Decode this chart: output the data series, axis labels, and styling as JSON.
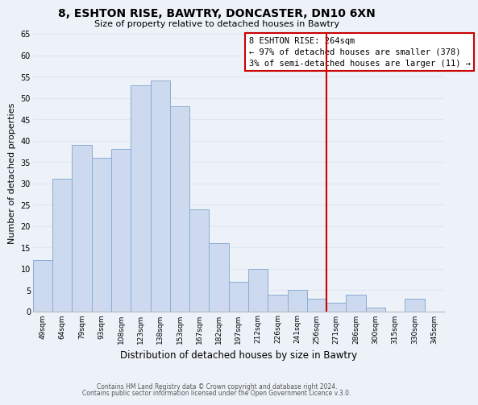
{
  "title": "8, ESHTON RISE, BAWTRY, DONCASTER, DN10 6XN",
  "subtitle": "Size of property relative to detached houses in Bawtry",
  "xlabel": "Distribution of detached houses by size in Bawtry",
  "ylabel": "Number of detached properties",
  "footer_line1": "Contains HM Land Registry data © Crown copyright and database right 2024.",
  "footer_line2": "Contains public sector information licensed under the Open Government Licence v.3.0.",
  "bar_labels": [
    "49sqm",
    "64sqm",
    "79sqm",
    "93sqm",
    "108sqm",
    "123sqm",
    "138sqm",
    "153sqm",
    "167sqm",
    "182sqm",
    "197sqm",
    "212sqm",
    "226sqm",
    "241sqm",
    "256sqm",
    "271sqm",
    "286sqm",
    "300sqm",
    "315sqm",
    "330sqm",
    "345sqm"
  ],
  "bar_values": [
    12,
    31,
    39,
    36,
    38,
    53,
    54,
    48,
    24,
    16,
    7,
    10,
    4,
    5,
    3,
    2,
    4,
    1,
    0,
    3,
    0
  ],
  "bar_color": "#ccd9ee",
  "bar_edge_color": "#8aadd4",
  "ylim": [
    0,
    65
  ],
  "yticks": [
    0,
    5,
    10,
    15,
    20,
    25,
    30,
    35,
    40,
    45,
    50,
    55,
    60,
    65
  ],
  "vline_color": "#cc0000",
  "annotation_title": "8 ESHTON RISE: 264sqm",
  "annotation_line1": "← 97% of detached houses are smaller (378)",
  "annotation_line2": "3% of semi-detached houses are larger (11) →",
  "grid_color": "#dde6f0",
  "background_color": "#edf2f9"
}
